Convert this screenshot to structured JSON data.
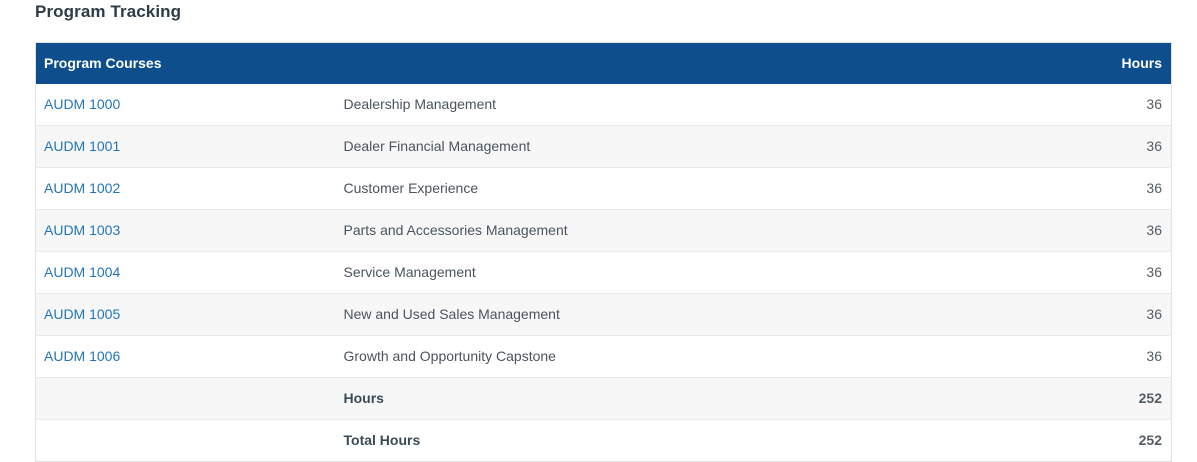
{
  "page": {
    "title": "Program Tracking"
  },
  "colors": {
    "table_header_bg": "#0e4e8c",
    "table_header_text": "#ffffff",
    "link": "#2275bb",
    "row_stripe": "#f7f7f7",
    "body_text": "#4a545e",
    "heading_text": "#2d3b45"
  },
  "table": {
    "headers": {
      "courses": "Program Courses",
      "hours": "Hours"
    },
    "rows": [
      {
        "code": "AUDM 1000",
        "title": "Dealership Management",
        "hours": "36"
      },
      {
        "code": "AUDM 1001",
        "title": "Dealer Financial Management",
        "hours": "36"
      },
      {
        "code": "AUDM 1002",
        "title": "Customer Experience",
        "hours": "36"
      },
      {
        "code": "AUDM 1003",
        "title": "Parts and Accessories Management",
        "hours": "36"
      },
      {
        "code": "AUDM 1004",
        "title": "Service Management",
        "hours": "36"
      },
      {
        "code": "AUDM 1005",
        "title": "New and Used Sales Management",
        "hours": "36"
      },
      {
        "code": "AUDM 1006",
        "title": "Growth and Opportunity Capstone",
        "hours": "36"
      }
    ],
    "summary_rows": [
      {
        "label": "Hours",
        "hours": "252"
      },
      {
        "label": "Total Hours",
        "hours": "252"
      }
    ]
  }
}
